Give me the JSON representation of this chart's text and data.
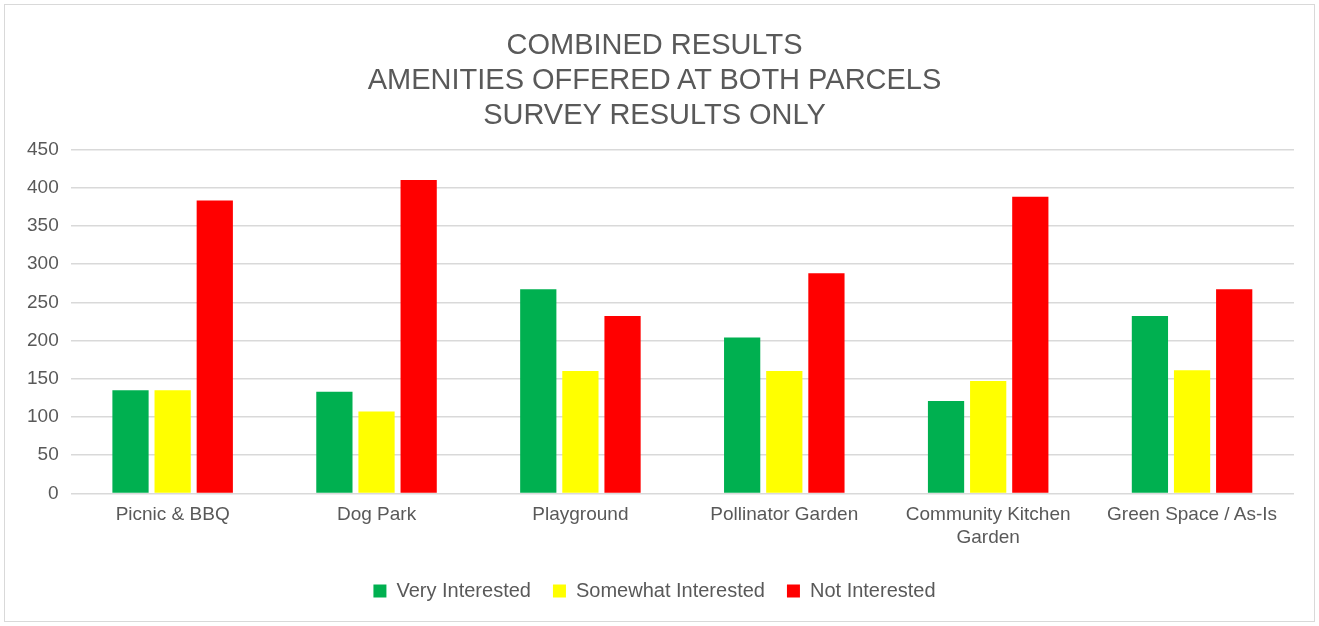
{
  "chart_data": {
    "type": "bar",
    "title": [
      "COMBINED RESULTS",
      "AMENITIES OFFERED AT BOTH PARCELS",
      "SURVEY RESULTS ONLY"
    ],
    "categories": [
      "Picnic & BBQ",
      "Dog Park",
      "Playground",
      "Pollinator Garden",
      "Community Kitchen Garden",
      "Green Space / As-Is"
    ],
    "series": [
      {
        "name": "Very Interested",
        "color": "#00b050",
        "values": [
          135,
          133,
          267,
          204,
          121,
          232
        ]
      },
      {
        "name": "Somewhat Interested",
        "color": "#ffff00",
        "values": [
          135,
          107,
          160,
          160,
          147,
          161
        ]
      },
      {
        "name": "Not Interested",
        "color": "#ff0000",
        "values": [
          383,
          410,
          232,
          288,
          388,
          267
        ]
      }
    ],
    "ylim": [
      0,
      450
    ],
    "yticks": [
      0,
      50,
      100,
      150,
      200,
      250,
      300,
      350,
      400,
      450
    ],
    "grid": "y",
    "legend": "bottom"
  }
}
